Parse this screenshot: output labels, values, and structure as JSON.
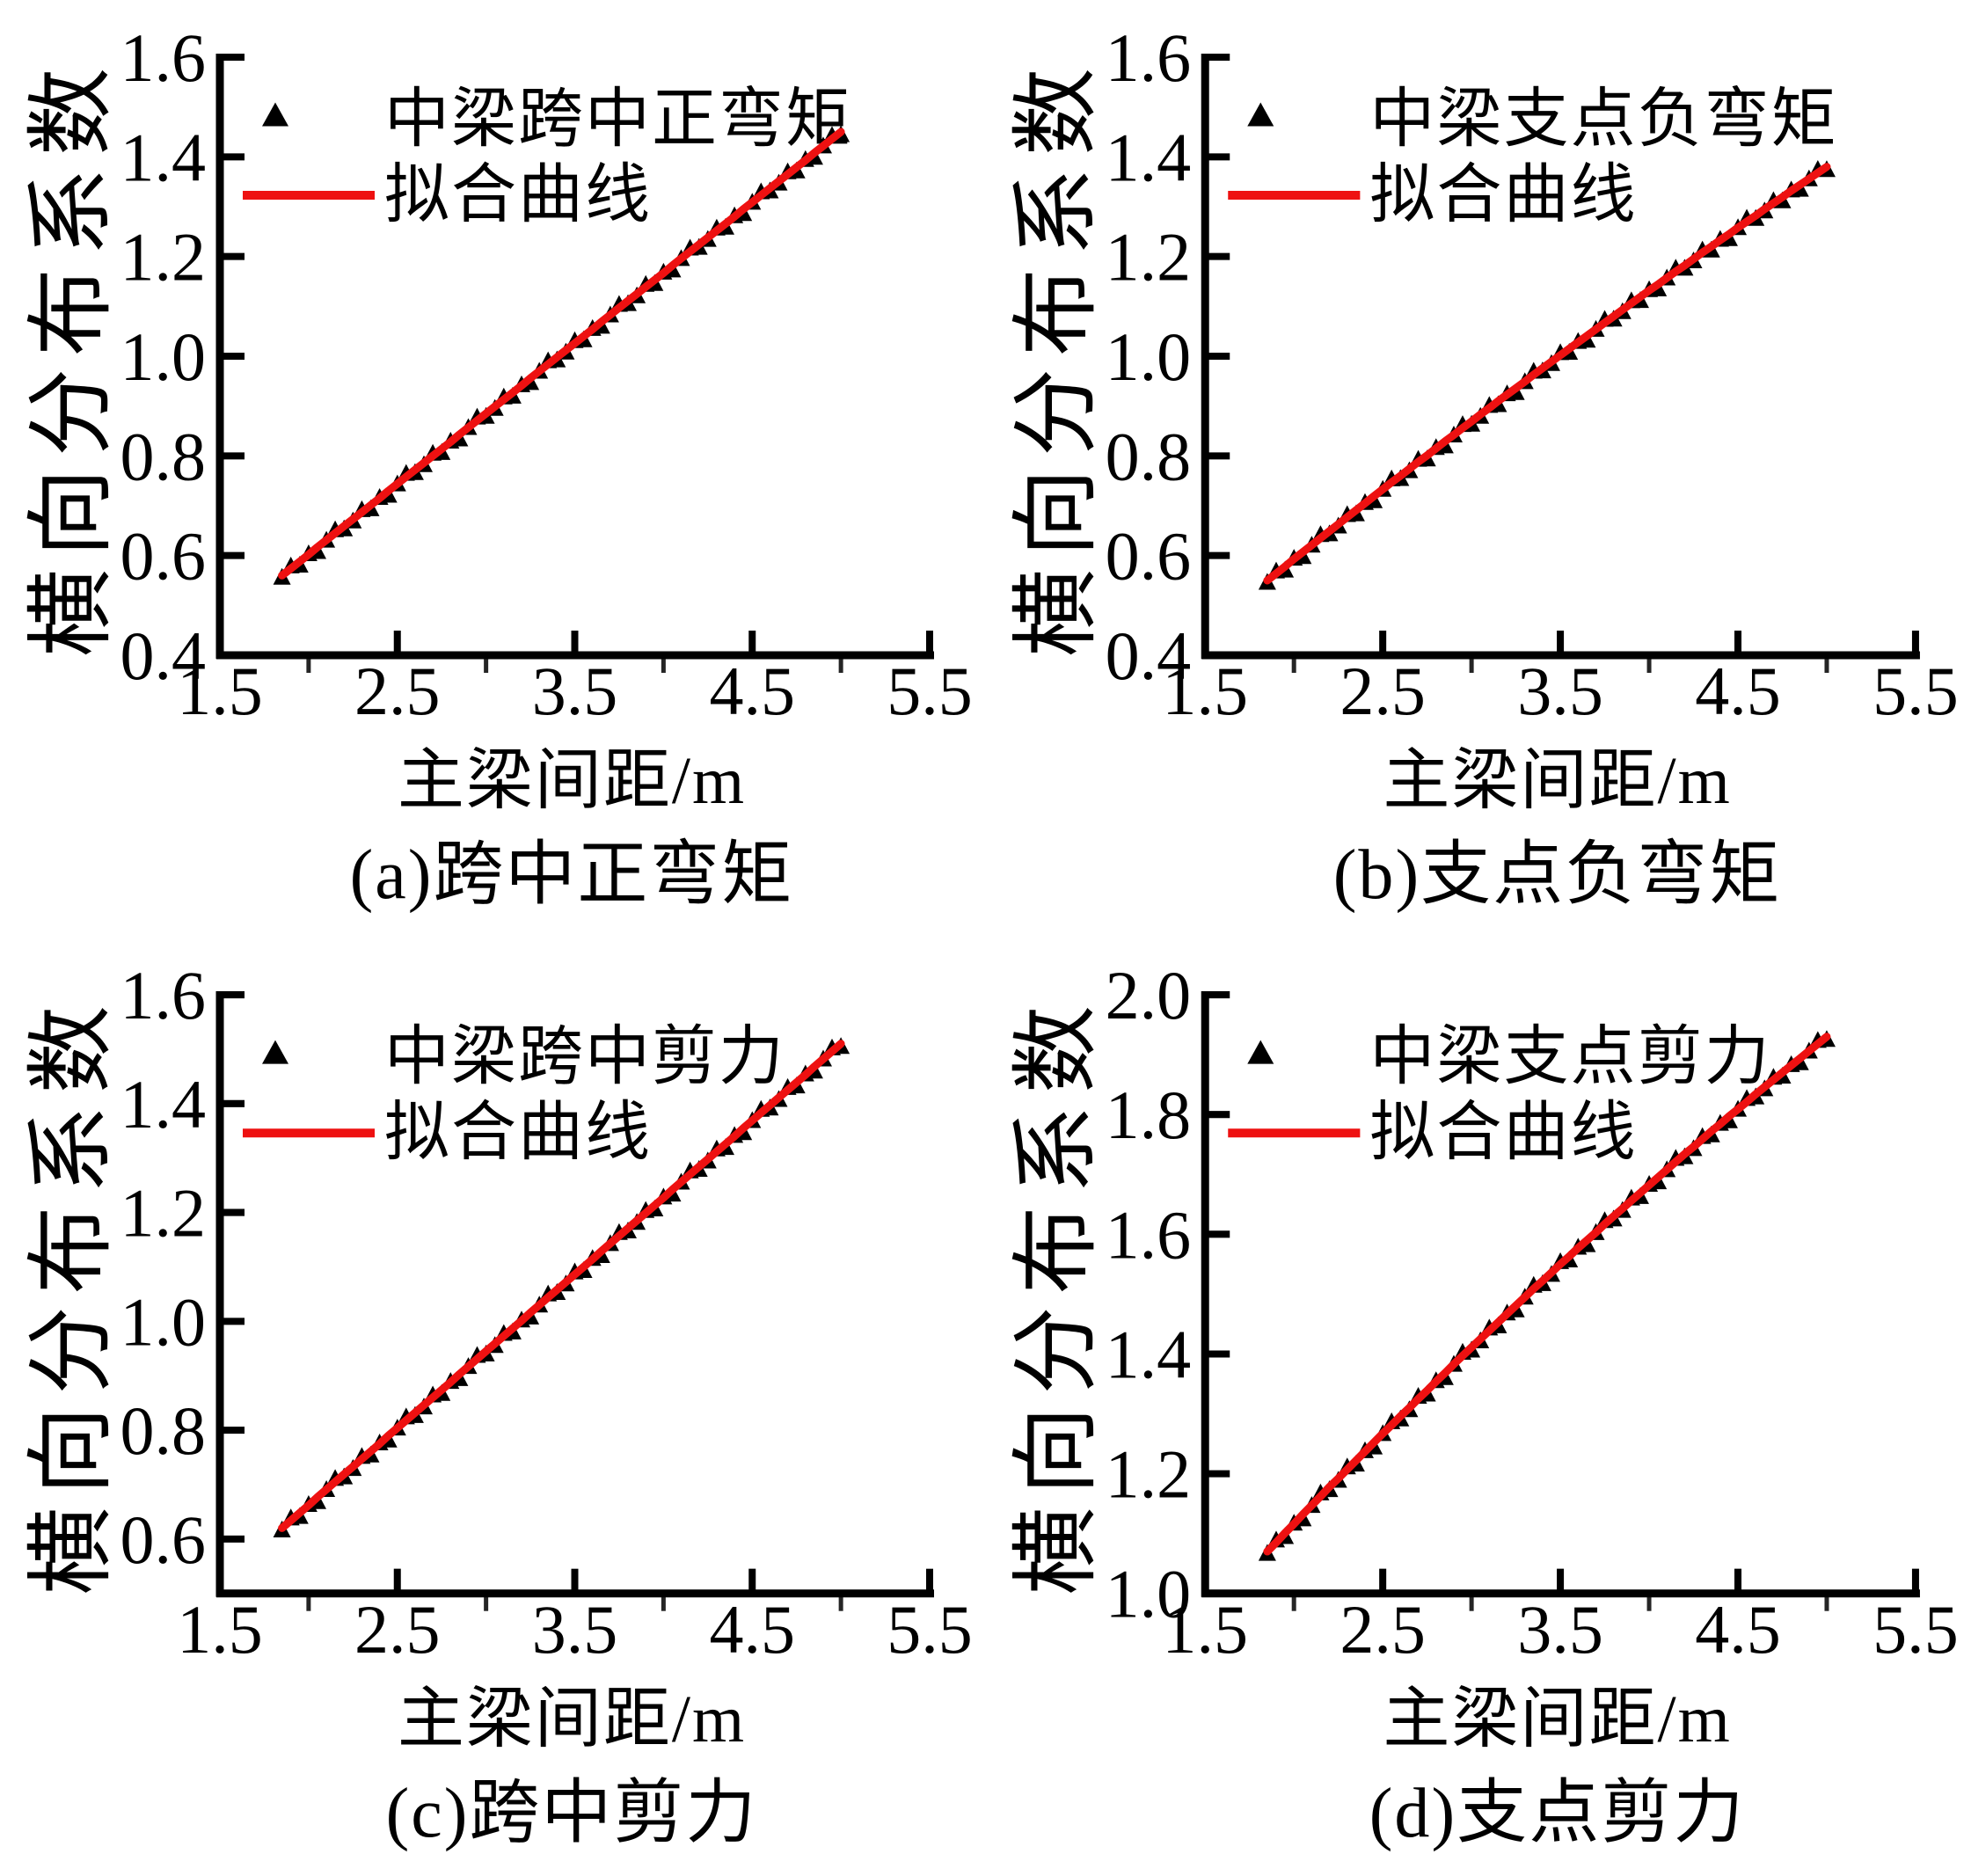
{
  "figure": {
    "background": "#ffffff",
    "text_color": "#000000",
    "marker_color": "#000000",
    "fit_color": "#ee1111"
  },
  "chart_data": [
    {
      "id": "a",
      "type": "scatter",
      "caption": "(a)跨中正弯矩",
      "xlabel": "主梁间距/m",
      "ylabel": "横向分布系数",
      "legend": {
        "marker_label": "中梁跨中正弯矩",
        "line_label": "拟合曲线",
        "marker_icon": "filled-triangle",
        "position": "upper-left"
      },
      "xlim": [
        1.5,
        5.5
      ],
      "ylim": [
        0.4,
        1.6
      ],
      "xticks": [
        1.5,
        2.5,
        3.5,
        4.5,
        5.5
      ],
      "xtick_labels": [
        "1.5",
        "2.5",
        "3.5",
        "4.5",
        "5.5"
      ],
      "xminor_ticks": [
        2.0,
        3.0,
        4.0,
        5.0
      ],
      "yticks": [
        0.4,
        0.6,
        0.8,
        1.0,
        1.2,
        1.4,
        1.6
      ],
      "ytick_labels": [
        "0.4",
        "0.6",
        "0.8",
        "1.0",
        "1.2",
        "1.4",
        "1.6"
      ],
      "grid": false,
      "series": {
        "name": "中梁跨中正弯矩",
        "x_start": 1.85,
        "x_step": 0.05,
        "y": [
          0.56,
          0.574,
          0.588,
          0.602,
          0.617,
          0.631,
          0.645,
          0.659,
          0.673,
          0.687,
          0.701,
          0.715,
          0.73,
          0.744,
          0.758,
          0.772,
          0.786,
          0.8,
          0.814,
          0.828,
          0.843,
          0.857,
          0.871,
          0.885,
          0.899,
          0.913,
          0.927,
          0.941,
          0.956,
          0.97,
          0.984,
          0.998,
          1.012,
          1.026,
          1.04,
          1.054,
          1.069,
          1.083,
          1.097,
          1.111,
          1.125,
          1.139,
          1.153,
          1.167,
          1.182,
          1.196,
          1.21,
          1.224,
          1.238,
          1.252,
          1.266,
          1.28,
          1.295,
          1.309,
          1.323,
          1.337,
          1.351,
          1.365,
          1.379,
          1.393,
          1.408,
          1.422,
          1.436,
          1.45
        ]
      },
      "fit_line": {
        "name": "拟合曲线",
        "shape": "linear",
        "from": [
          1.85,
          0.56
        ],
        "to": [
          5.0,
          1.45
        ]
      }
    },
    {
      "id": "b",
      "type": "scatter",
      "caption": "(b)支点负弯矩",
      "xlabel": "主梁间距/m",
      "ylabel": "横向分布系数",
      "legend": {
        "marker_label": "中梁支点负弯矩",
        "line_label": "拟合曲线",
        "marker_icon": "filled-triangle",
        "position": "upper-left"
      },
      "xlim": [
        1.5,
        5.5
      ],
      "ylim": [
        0.4,
        1.6
      ],
      "xticks": [
        1.5,
        2.5,
        3.5,
        4.5,
        5.5
      ],
      "xtick_labels": [
        "1.5",
        "2.5",
        "3.5",
        "4.5",
        "5.5"
      ],
      "xminor_ticks": [
        2.0,
        3.0,
        4.0,
        5.0
      ],
      "yticks": [
        0.4,
        0.6,
        0.8,
        1.0,
        1.2,
        1.4,
        1.6
      ],
      "ytick_labels": [
        "0.4",
        "0.6",
        "0.8",
        "1.0",
        "1.2",
        "1.4",
        "1.6"
      ],
      "grid": false,
      "series": {
        "name": "中梁支点负弯矩",
        "x_start": 1.85,
        "x_step": 0.05,
        "y": [
          0.55,
          0.564,
          0.578,
          0.593,
          0.607,
          0.621,
          0.635,
          0.649,
          0.663,
          0.677,
          0.691,
          0.705,
          0.719,
          0.733,
          0.747,
          0.76,
          0.774,
          0.788,
          0.801,
          0.815,
          0.829,
          0.842,
          0.856,
          0.869,
          0.883,
          0.896,
          0.91,
          0.923,
          0.936,
          0.949,
          0.963,
          0.976,
          0.989,
          1.002,
          1.015,
          1.028,
          1.041,
          1.054,
          1.067,
          1.08,
          1.093,
          1.106,
          1.119,
          1.132,
          1.144,
          1.157,
          1.17,
          1.182,
          1.195,
          1.208,
          1.22,
          1.233,
          1.245,
          1.258,
          1.27,
          1.282,
          1.295,
          1.307,
          1.319,
          1.332,
          1.344,
          1.356,
          1.368,
          1.38
        ]
      },
      "fit_line": {
        "name": "拟合曲线",
        "shape": "slightly-concave",
        "from": [
          1.85,
          0.55
        ],
        "to": [
          5.0,
          1.38
        ]
      }
    },
    {
      "id": "c",
      "type": "scatter",
      "caption": "(c)跨中剪力",
      "xlabel": "主梁间距/m",
      "ylabel": "横向分布系数",
      "legend": {
        "marker_label": "中梁跨中剪力",
        "line_label": "拟合曲线",
        "marker_icon": "filled-triangle",
        "position": "upper-left"
      },
      "xlim": [
        1.5,
        5.5
      ],
      "ylim": [
        0.5,
        1.6
      ],
      "xticks": [
        1.5,
        2.5,
        3.5,
        4.5,
        5.5
      ],
      "xtick_labels": [
        "1.5",
        "2.5",
        "3.5",
        "4.5",
        "5.5"
      ],
      "xminor_ticks": [
        2.0,
        3.0,
        4.0,
        5.0
      ],
      "yticks": [
        0.6,
        0.8,
        1.0,
        1.2,
        1.4,
        1.6
      ],
      "ytick_labels": [
        "0.6",
        "0.8",
        "1.0",
        "1.2",
        "1.4",
        "1.6"
      ],
      "grid": false,
      "series": {
        "name": "中梁跨中剪力",
        "x_start": 1.85,
        "x_step": 0.05,
        "y": [
          0.62,
          0.634,
          0.648,
          0.662,
          0.677,
          0.691,
          0.705,
          0.719,
          0.733,
          0.747,
          0.761,
          0.775,
          0.79,
          0.804,
          0.818,
          0.832,
          0.846,
          0.86,
          0.874,
          0.888,
          0.903,
          0.917,
          0.931,
          0.945,
          0.959,
          0.973,
          0.987,
          1.001,
          1.016,
          1.03,
          1.044,
          1.058,
          1.072,
          1.086,
          1.1,
          1.114,
          1.129,
          1.143,
          1.157,
          1.171,
          1.185,
          1.199,
          1.213,
          1.227,
          1.242,
          1.256,
          1.27,
          1.284,
          1.298,
          1.312,
          1.326,
          1.34,
          1.355,
          1.369,
          1.383,
          1.397,
          1.411,
          1.425,
          1.439,
          1.453,
          1.468,
          1.482,
          1.496,
          1.51
        ]
      },
      "fit_line": {
        "name": "拟合曲线",
        "shape": "linear",
        "from": [
          1.85,
          0.62
        ],
        "to": [
          5.0,
          1.51
        ]
      }
    },
    {
      "id": "d",
      "type": "scatter",
      "caption": "(d)支点剪力",
      "xlabel": "主梁间距/m",
      "ylabel": "横向分布系数",
      "legend": {
        "marker_label": "中梁支点剪力",
        "line_label": "拟合曲线",
        "marker_icon": "filled-triangle",
        "position": "upper-left"
      },
      "xlim": [
        1.5,
        5.5
      ],
      "ylim": [
        1.0,
        2.0
      ],
      "xticks": [
        1.5,
        2.5,
        3.5,
        4.5,
        5.5
      ],
      "xtick_labels": [
        "1.5",
        "2.5",
        "3.5",
        "4.5",
        "5.5"
      ],
      "xminor_ticks": [
        2.0,
        3.0,
        4.0,
        5.0
      ],
      "yticks": [
        1.0,
        1.2,
        1.4,
        1.6,
        1.8,
        2.0
      ],
      "ytick_labels": [
        "1.0",
        "1.2",
        "1.4",
        "1.6",
        "1.8",
        "2.0"
      ],
      "grid": false,
      "series": {
        "name": "中梁支点剪力",
        "x_start": 1.85,
        "x_step": 0.05,
        "y": [
          1.07,
          1.085,
          1.101,
          1.116,
          1.132,
          1.147,
          1.162,
          1.178,
          1.192,
          1.207,
          1.222,
          1.237,
          1.252,
          1.267,
          1.281,
          1.296,
          1.31,
          1.325,
          1.339,
          1.354,
          1.368,
          1.383,
          1.397,
          1.411,
          1.425,
          1.439,
          1.453,
          1.467,
          1.481,
          1.495,
          1.509,
          1.522,
          1.536,
          1.55,
          1.563,
          1.577,
          1.59,
          1.603,
          1.617,
          1.63,
          1.643,
          1.656,
          1.669,
          1.682,
          1.695,
          1.708,
          1.721,
          1.734,
          1.746,
          1.759,
          1.772,
          1.784,
          1.797,
          1.809,
          1.821,
          1.834,
          1.846,
          1.858,
          1.87,
          1.882,
          1.894,
          1.906,
          1.918,
          1.93
        ]
      },
      "fit_line": {
        "name": "拟合曲线",
        "shape": "slightly-concave",
        "from": [
          1.85,
          1.07
        ],
        "to": [
          5.0,
          1.93
        ]
      }
    }
  ]
}
